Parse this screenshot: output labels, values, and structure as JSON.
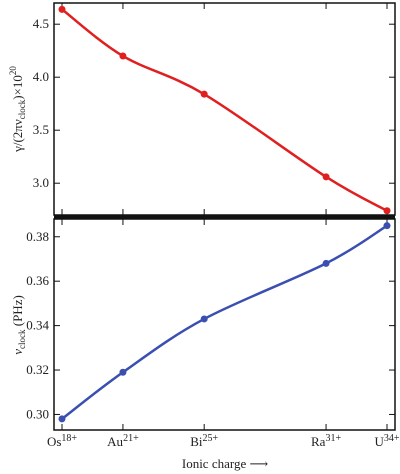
{
  "chart_data": [
    {
      "type": "line",
      "panel": "top",
      "ylabel_parts": [
        "γ/(2πν",
        "clock",
        ")×10",
        "20"
      ],
      "xlabel": "",
      "ylim": [
        2.7,
        4.7
      ],
      "yticks": [
        3.0,
        3.5,
        4.0,
        4.5
      ],
      "ytick_labels": [
        "3.0",
        "3.5",
        "4.0",
        "4.5"
      ],
      "color": "#e02020",
      "x": [
        18,
        21,
        25,
        31,
        34
      ],
      "y": [
        4.64,
        4.2,
        3.84,
        3.06,
        2.74
      ]
    },
    {
      "type": "line",
      "panel": "bottom",
      "ylabel_parts": [
        "ν",
        "clock",
        " (PHz)"
      ],
      "xlabel": "Ionic charge ⟶",
      "ylim": [
        0.293,
        0.388
      ],
      "yticks": [
        0.3,
        0.32,
        0.34,
        0.36,
        0.38
      ],
      "ytick_labels": [
        "0.30",
        "0.32",
        "0.34",
        "0.36",
        "0.38"
      ],
      "color": "#3a4fb0",
      "x": [
        18,
        21,
        25,
        31,
        34
      ],
      "y": [
        0.298,
        0.319,
        0.343,
        0.368,
        0.385
      ]
    }
  ],
  "x_axis": {
    "tick_base": [
      "Os",
      "Au",
      "Bi",
      "Ra",
      "U"
    ],
    "tick_sup": [
      "18+",
      "21+",
      "25+",
      "31+",
      "34+"
    ]
  }
}
